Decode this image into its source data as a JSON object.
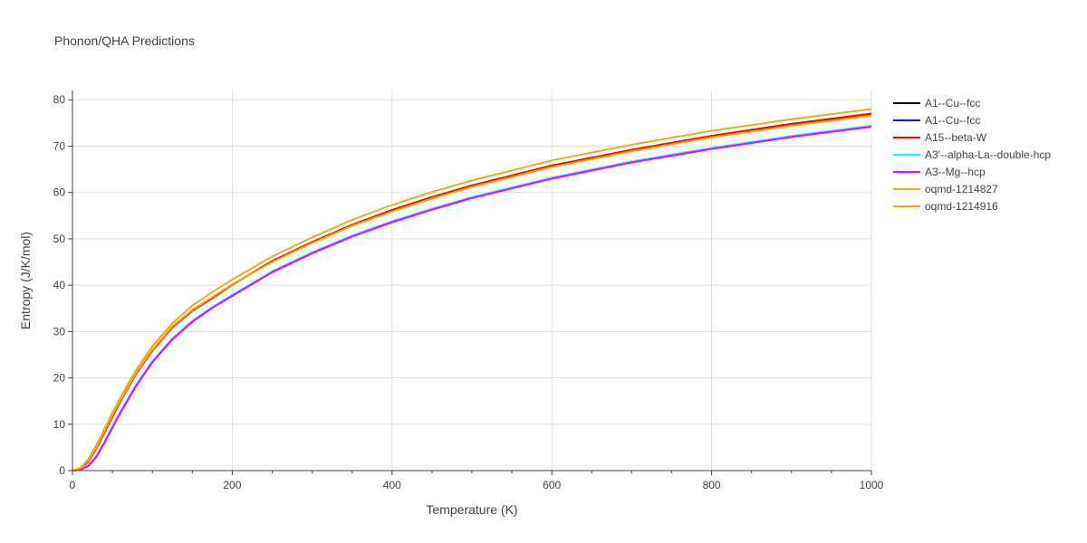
{
  "chart_data": {
    "type": "line",
    "title": "Phonon/QHA Predictions",
    "xlabel": "Temperature (K)",
    "ylabel": "Entropy (J/K/mol)",
    "xlim": [
      0,
      1000
    ],
    "ylim": [
      0,
      82
    ],
    "xticks": [
      "0",
      "200",
      "400",
      "600",
      "800",
      "1000"
    ],
    "yticks": [
      "0",
      "10",
      "20",
      "30",
      "40",
      "50",
      "60",
      "70",
      "80"
    ],
    "grid": true,
    "legend_position": "right",
    "x": [
      0,
      10,
      20,
      30,
      40,
      50,
      60,
      80,
      100,
      125,
      150,
      175,
      200,
      250,
      300,
      350,
      400,
      450,
      500,
      600,
      700,
      800,
      900,
      1000
    ],
    "series": [
      {
        "name": "A1--Cu--fcc",
        "color": "#000000",
        "values": [
          0,
          0.4,
          2.0,
          4.8,
          8.2,
          11.6,
          15.0,
          21.0,
          25.9,
          30.9,
          34.5,
          37.2,
          40.1,
          45.2,
          49.3,
          53.0,
          56.2,
          59.0,
          61.5,
          65.8,
          69.2,
          72.2,
          74.8,
          77.0
        ]
      },
      {
        "name": "A1--Cu--fcc",
        "color": "#0000ff",
        "values": [
          0,
          0.2,
          1.0,
          3.0,
          6.0,
          9.3,
          12.5,
          18.4,
          23.4,
          28.3,
          32.1,
          35.1,
          37.7,
          42.8,
          46.9,
          50.5,
          53.6,
          56.3,
          58.8,
          63.0,
          66.5,
          69.4,
          72.0,
          74.2
        ]
      },
      {
        "name": "A15--beta-W",
        "color": "#ff0000",
        "values": [
          0,
          0.4,
          2.0,
          4.8,
          8.2,
          11.6,
          15.0,
          21.0,
          25.9,
          30.9,
          34.5,
          37.2,
          40.1,
          45.2,
          49.3,
          53.0,
          56.2,
          59.0,
          61.5,
          65.8,
          69.2,
          72.2,
          74.8,
          77.0
        ]
      },
      {
        "name": "A3'--alpha-La--double-hcp",
        "color": "#00ffff",
        "values": [
          0,
          0.3,
          1.2,
          3.2,
          6.2,
          9.5,
          12.7,
          18.6,
          23.6,
          28.5,
          32.3,
          35.3,
          37.9,
          43.0,
          47.1,
          50.7,
          53.8,
          56.5,
          59.0,
          63.2,
          66.7,
          69.6,
          72.2,
          74.4
        ]
      },
      {
        "name": "A3--Mg--hcp",
        "color": "#ff00ff",
        "values": [
          0,
          0.2,
          1.0,
          3.0,
          6.0,
          9.3,
          12.5,
          18.4,
          23.4,
          28.3,
          32.1,
          35.1,
          37.7,
          42.8,
          46.9,
          50.5,
          53.6,
          56.3,
          58.8,
          63.0,
          66.5,
          69.4,
          72.0,
          74.2
        ]
      },
      {
        "name": "oqmd-1214827",
        "color": "#e0b020",
        "values": [
          0,
          0.6,
          2.5,
          5.5,
          9.0,
          12.5,
          15.8,
          21.8,
          26.8,
          31.8,
          35.6,
          38.5,
          41.2,
          46.2,
          50.3,
          54.1,
          57.3,
          60.1,
          62.6,
          66.9,
          70.3,
          73.3,
          75.8,
          78.0
        ]
      },
      {
        "name": "oqmd-1214916",
        "color": "#ffa500",
        "values": [
          0,
          0.5,
          2.2,
          5.0,
          8.5,
          11.9,
          15.2,
          21.2,
          26.1,
          31.1,
          34.7,
          37.4,
          40.2,
          45.0,
          49.1,
          52.8,
          55.9,
          58.7,
          61.2,
          65.5,
          68.9,
          71.9,
          74.4,
          76.6
        ]
      }
    ]
  }
}
